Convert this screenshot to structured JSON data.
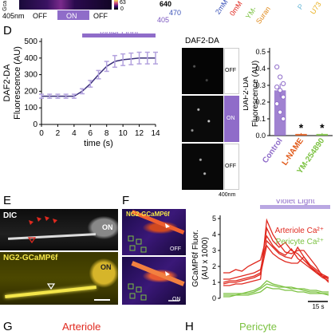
{
  "top": {
    "nm_label": "405nm",
    "off_left": "OFF",
    "on": "ON",
    "off_right": "OFF",
    "cbar_top": "63",
    "cbar_bottom": "0",
    "cbar_axis": "Gca",
    "wl_640": "640",
    "wl_470": "470",
    "wl_405": "405",
    "legend_2mM": "2mM",
    "legend_0mM": "0mM",
    "legend_ym": "YM-",
    "legend_sura": "Suran",
    "legend_p": "P",
    "legend_u73": "U73"
  },
  "panel_d": {
    "letter": "D",
    "violet_light": "Violet Light",
    "image_title": "DAF2-DA",
    "image_labels": [
      "OFF",
      "ON",
      "OFF"
    ],
    "image_nm": "400nm"
  },
  "panel_e": {
    "letter": "E",
    "dic": "DIC",
    "ng2": "NG2-GCaMP6f",
    "on_top": "ON",
    "on_bottom": "ON"
  },
  "panel_f": {
    "letter": "F",
    "ng2": "NG2-GCaMP6f",
    "off": "OFF",
    "on": "ON"
  },
  "panel_g": {
    "letter": "G",
    "title": "Arteriole"
  },
  "panel_h": {
    "letter": "H",
    "title": "Pericyte"
  },
  "chart_data": [
    {
      "type": "line",
      "x": [
        0,
        1,
        2,
        3,
        4,
        5,
        6,
        7,
        8,
        9,
        10,
        11,
        12,
        13,
        14
      ],
      "values": [
        170,
        170,
        170,
        170,
        170,
        200,
        245,
        300,
        350,
        380,
        390,
        395,
        400,
        400,
        400
      ],
      "error": [
        12,
        12,
        12,
        12,
        12,
        15,
        20,
        25,
        30,
        35,
        35,
        35,
        35,
        35,
        35
      ],
      "ylabel": "DAF2-DA\nFluorescence (AU)",
      "xlabel": "time (s)",
      "xlim": [
        0,
        14
      ],
      "ylim": [
        0,
        500
      ],
      "xticks": [
        "0",
        "2",
        "4",
        "6",
        "8",
        "10",
        "12",
        "14"
      ],
      "yticks": [
        "0",
        "100",
        "200",
        "300",
        "400",
        "500"
      ],
      "annotation": "Violet Light",
      "light_on": [
        5,
        14
      ],
      "color": "#8f6cc9"
    },
    {
      "type": "bar",
      "categories": [
        "Control",
        "L-NAME",
        "YM-254890"
      ],
      "values": [
        0.27,
        0.01,
        0.01
      ],
      "errors": [
        0.04,
        0.005,
        0.005
      ],
      "ylabel": "DAF2-DA\nFluorescence (AU)",
      "ylim": [
        0,
        0.5
      ],
      "yticks": [
        "0.0",
        "0.1",
        "0.2",
        "0.3",
        "0.4",
        "0.5"
      ],
      "points": [
        0.41,
        0.35,
        0.31,
        0.29,
        0.27,
        0.23,
        0.19,
        0.14,
        0.1
      ],
      "significance": [
        "",
        "*",
        "*"
      ],
      "colors": [
        "#8f6cc9",
        "#e05a1a",
        "#7cc242"
      ]
    },
    {
      "type": "line",
      "title": "Violet Light",
      "ylabel": "GCaMP6f Fluor.\n(AU x 1000)",
      "ylim": [
        0,
        5
      ],
      "yticks": [
        "0",
        "1",
        "2",
        "3",
        "4",
        "5"
      ],
      "scale_bar": "15 s",
      "series": [
        {
          "name": "Arteriole Ca²⁺",
          "color": "#e0291f",
          "traces": [
            [
              0.8,
              0.8,
              0.9,
              0.9,
              1.0,
              1.1,
              1.2,
              4.9,
              4.0,
              3.4,
              2.9,
              2.8,
              3.0,
              3.0,
              2.5,
              2.0,
              1.4,
              1.0
            ],
            [
              1.0,
              1.1,
              1.1,
              1.2,
              1.3,
              1.4,
              1.6,
              4.4,
              3.6,
              3.2,
              3.5,
              3.0,
              2.8,
              2.4,
              2.0,
              1.7,
              1.4,
              1.2
            ],
            [
              1.6,
              1.6,
              1.8,
              1.7,
              2.0,
              2.2,
              2.4,
              3.9,
              3.3,
              2.9,
              2.7,
              3.1,
              2.5,
              2.2,
              1.9,
              1.6,
              1.4,
              1.3
            ],
            [
              1.2,
              1.2,
              1.3,
              1.4,
              1.5,
              1.6,
              1.8,
              3.6,
              3.2,
              2.8,
              2.6,
              2.5,
              3.2,
              2.6,
              2.1,
              1.8,
              1.5,
              1.3
            ],
            [
              0.9,
              1.0,
              1.0,
              1.1,
              1.2,
              1.3,
              1.5,
              3.3,
              2.8,
              2.5,
              2.3,
              2.2,
              2.2,
              2.6,
              2.0,
              1.6,
              1.3,
              1.1
            ]
          ]
        },
        {
          "name": "Pericyte Ca²⁺",
          "color": "#7cc242",
          "traces": [
            [
              0.3,
              0.3,
              0.3,
              0.3,
              0.4,
              0.5,
              0.7,
              1.1,
              0.9,
              0.8,
              0.7,
              0.7,
              0.6,
              0.6,
              0.5,
              0.5,
              0.4,
              0.4
            ],
            [
              0.2,
              0.2,
              0.2,
              0.3,
              0.3,
              0.4,
              0.6,
              0.9,
              0.8,
              0.7,
              0.7,
              0.6,
              0.6,
              0.5,
              0.4,
              0.4,
              0.3,
              0.3
            ],
            [
              0.1,
              0.1,
              0.2,
              0.2,
              0.2,
              0.3,
              0.4,
              0.7,
              0.6,
              0.6,
              0.5,
              0.5,
              0.4,
              0.4,
              0.3,
              0.3,
              0.3,
              0.2
            ]
          ]
        }
      ]
    }
  ]
}
